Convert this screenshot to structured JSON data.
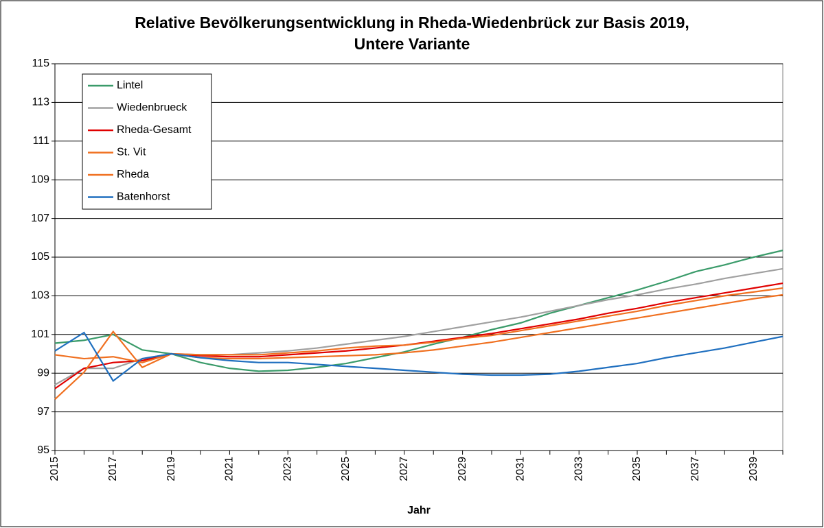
{
  "chart_data": {
    "type": "line",
    "title": "Relative Bevölkerungsentwicklung in Rheda-Wiedenbrück zur Basis 2019, Untere Variante",
    "x_label": "Jahr",
    "categories": [
      "2015",
      null,
      "2017",
      null,
      "2019",
      null,
      "2021",
      null,
      "2023",
      null,
      "2025",
      null,
      "2027",
      null,
      "2029",
      null,
      "2031",
      null,
      "2033",
      null,
      "2035",
      null,
      "2037",
      null,
      "2039",
      null
    ],
    "series": [
      {
        "name": "Lintel",
        "color": "#3a9b6a",
        "values": [
          100.55,
          100.7,
          101.0,
          100.2,
          100.0,
          99.55,
          99.25,
          99.1,
          99.15,
          99.3,
          99.5,
          99.8,
          100.1,
          100.5,
          100.85,
          101.25,
          101.6,
          102.1,
          102.5,
          102.9,
          103.3,
          103.75,
          104.25,
          104.6,
          105.0,
          105.35
        ]
      },
      {
        "name": "Wiedenbrueck",
        "color": "#a0a0a0",
        "values": [
          98.4,
          99.25,
          99.25,
          99.75,
          100.0,
          99.95,
          99.95,
          100.05,
          100.15,
          100.3,
          100.5,
          100.7,
          100.9,
          101.15,
          101.4,
          101.65,
          101.9,
          102.2,
          102.5,
          102.8,
          103.05,
          103.35,
          103.6,
          103.9,
          104.15,
          104.4
        ]
      },
      {
        "name": "Rheda-Gesamt",
        "color": "#e00000",
        "values": [
          98.2,
          99.25,
          99.55,
          99.65,
          100.0,
          99.9,
          99.85,
          99.85,
          99.95,
          100.05,
          100.15,
          100.3,
          100.45,
          100.65,
          100.85,
          101.05,
          101.3,
          101.55,
          101.8,
          102.1,
          102.35,
          102.65,
          102.9,
          103.15,
          103.4,
          103.65
        ]
      },
      {
        "name": "St. Vit",
        "color": "#f07020",
        "values": [
          97.65,
          99.05,
          101.15,
          99.3,
          100.0,
          99.95,
          99.95,
          99.95,
          100.05,
          100.15,
          100.3,
          100.4,
          100.45,
          100.6,
          100.8,
          100.95,
          101.2,
          101.45,
          101.7,
          101.95,
          102.2,
          102.5,
          102.75,
          103.0,
          103.2,
          103.4
        ]
      },
      {
        "name": "Rheda",
        "color": "#f07020",
        "values": [
          99.95,
          99.75,
          99.85,
          99.55,
          100.0,
          99.8,
          99.75,
          99.75,
          99.8,
          99.85,
          99.9,
          99.95,
          100.05,
          100.2,
          100.4,
          100.6,
          100.85,
          101.1,
          101.35,
          101.6,
          101.85,
          102.1,
          102.35,
          102.6,
          102.85,
          103.05
        ]
      },
      {
        "name": "Batenhorst",
        "color": "#1f6fbf",
        "values": [
          100.15,
          101.1,
          98.6,
          99.75,
          100.0,
          99.8,
          99.65,
          99.55,
          99.55,
          99.45,
          99.35,
          99.25,
          99.15,
          99.05,
          98.95,
          98.9,
          98.9,
          98.95,
          99.1,
          99.3,
          99.5,
          99.8,
          100.05,
          100.3,
          100.6,
          100.9
        ]
      }
    ],
    "ylim": [
      95,
      115
    ],
    "yticks": [
      95,
      97,
      99,
      101,
      103,
      105,
      107,
      109,
      111,
      113,
      115
    ],
    "grid": true,
    "legend": "upper left"
  }
}
